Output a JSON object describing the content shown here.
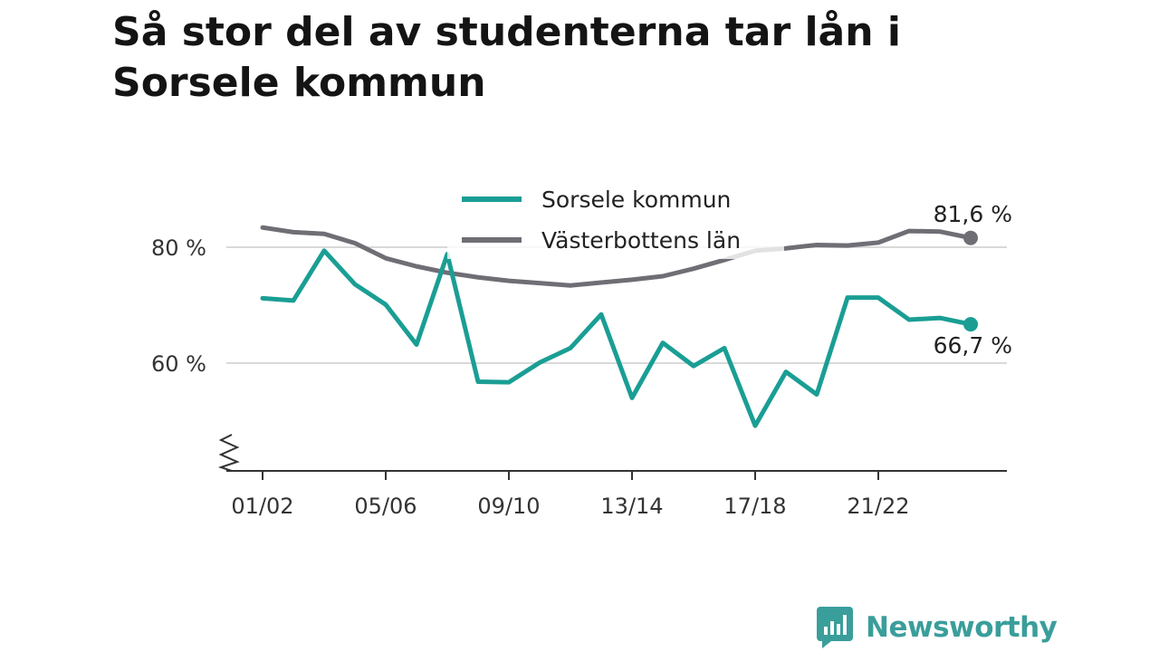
{
  "title": "Så stor del av studenterna tar lån i Sorsele kommun",
  "brand": {
    "name": "Newsworthy",
    "color": "#3a9e9b"
  },
  "chart_data": {
    "type": "line",
    "ylim": [
      45,
      90
    ],
    "y_ticks": [
      {
        "value": 60,
        "label": "60 %"
      },
      {
        "value": 80,
        "label": "80 %"
      }
    ],
    "x": [
      "01/02",
      "02/03",
      "03/04",
      "04/05",
      "05/06",
      "06/07",
      "07/08",
      "08/09",
      "09/10",
      "10/11",
      "11/12",
      "12/13",
      "13/14",
      "14/15",
      "15/16",
      "16/17",
      "17/18",
      "18/19",
      "19/20",
      "20/21",
      "21/22",
      "22/23",
      "23/24",
      "24/25"
    ],
    "x_tick_labels": [
      "01/02",
      "05/06",
      "09/10",
      "13/14",
      "17/18",
      "21/22"
    ],
    "axis_break": true,
    "grid": true,
    "legend_position": "top-center",
    "series": [
      {
        "name": "Sorsele kommun",
        "color": "#1a9e94",
        "values": [
          71.2,
          70.8,
          79.4,
          73.6,
          70.1,
          63.2,
          78.8,
          56.8,
          56.7,
          60.1,
          62.6,
          68.4,
          54.0,
          63.5,
          59.5,
          62.6,
          49.2,
          58.5,
          54.6,
          71.3,
          71.3,
          67.5,
          67.8,
          66.7
        ],
        "end_label": "66,7 %"
      },
      {
        "name": "Västerbottens län",
        "color": "#6f6e75",
        "values": [
          83.4,
          82.6,
          82.3,
          80.7,
          78.1,
          76.7,
          75.6,
          74.8,
          74.2,
          73.8,
          73.4,
          73.9,
          74.4,
          75.0,
          76.3,
          77.8,
          79.4,
          79.8,
          80.4,
          80.3,
          80.8,
          82.8,
          82.7,
          81.6
        ],
        "end_label": "81,6 %"
      }
    ]
  }
}
